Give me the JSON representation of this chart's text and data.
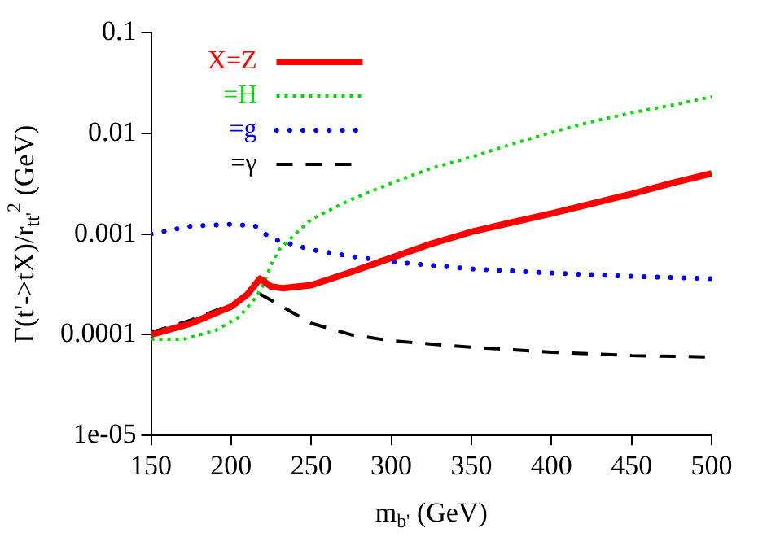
{
  "chart_data": {
    "type": "line",
    "xlabel": "m$_{b'}$ (GeV)",
    "ylabel": "Γ(t'->tX)/r$_{tt'}$$^{2}$ (GeV)",
    "log": "y",
    "xlim": [
      150,
      500
    ],
    "xticks": [
      150,
      200,
      250,
      300,
      350,
      400,
      450,
      500
    ],
    "ylim": [
      1e-05,
      0.1
    ],
    "yticks": [
      {
        "value": 1e-05,
        "label": "1e-05"
      },
      0.0001,
      0.001,
      0.01,
      0.1
    ],
    "grid": false,
    "legend": "top left",
    "marker": "none",
    "series": [
      {
        "name": "X=Z",
        "color": "#ff0000",
        "line_style": "solid",
        "x": [
          150,
          175,
          200,
          210,
          218,
          225,
          232,
          250,
          275,
          300,
          325,
          350,
          375,
          400,
          425,
          450,
          475,
          500
        ],
        "values": [
          0.0001,
          0.00013,
          0.00019,
          0.00025,
          0.00036,
          0.0003,
          0.00029,
          0.00031,
          0.00042,
          0.00058,
          0.0008,
          0.00105,
          0.0013,
          0.0016,
          0.002,
          0.0025,
          0.0032,
          0.004
        ]
      },
      {
        "name": "=H",
        "color": "#00dd00",
        "line_style": "dotted",
        "x": [
          150,
          170,
          190,
          205,
          215,
          220,
          225,
          230,
          240,
          250,
          275,
          300,
          325,
          350,
          375,
          400,
          425,
          450,
          475,
          500
        ],
        "values": [
          9e-05,
          9e-05,
          0.00011,
          0.00015,
          0.00023,
          0.00031,
          0.0005,
          0.0007,
          0.001,
          0.0014,
          0.0022,
          0.0032,
          0.0045,
          0.0058,
          0.0078,
          0.0102,
          0.013,
          0.016,
          0.019,
          0.023
        ]
      },
      {
        "name": "=g",
        "color": "#0000ff",
        "line_style": "dotted",
        "x": [
          150,
          175,
          200,
          215,
          225,
          250,
          275,
          300,
          350,
          400,
          450,
          500
        ],
        "values": [
          0.001,
          0.0012,
          0.00125,
          0.0012,
          0.0009,
          0.0007,
          0.0006,
          0.00053,
          0.00045,
          0.00041,
          0.00038,
          0.00036
        ]
      },
      {
        "name": "=γ",
        "color": "#000000",
        "line_style": "dashed",
        "x": [
          150,
          175,
          200,
          215,
          225,
          250,
          275,
          300,
          350,
          400,
          450,
          500
        ],
        "values": [
          0.000105,
          0.00014,
          0.0002,
          0.00027,
          0.00022,
          0.00013,
          0.0001,
          8.7e-05,
          7.5e-05,
          6.7e-05,
          6.2e-05,
          6e-05
        ]
      }
    ]
  }
}
